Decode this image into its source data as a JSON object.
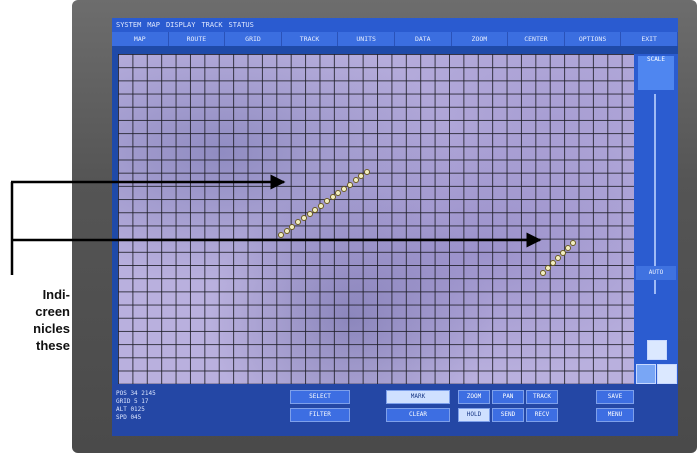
{
  "caption": {
    "lines": [
      "Indi-",
      "creen",
      "nicles",
      "these"
    ]
  },
  "display": {
    "top_bar_text": [
      "SYSTEM",
      "MAP",
      "DISPLAY",
      "TRACK",
      "STATUS"
    ],
    "menu_items": [
      "MAP",
      "ROUTE",
      "GRID",
      "TRACK",
      "UNITS",
      "DATA",
      "ZOOM",
      "CENTER",
      "OPTIONS",
      "EXIT"
    ],
    "right_panel": {
      "top_label": "SCALE",
      "mid_label": "AUTO"
    },
    "bottom_panel": {
      "left_block": [
        "POS 34 2145",
        "GRID 5 17",
        "ALT 0125",
        "SPD 045"
      ],
      "buttons": [
        "SELECT",
        "FILTER",
        "MARK",
        "CLEAR",
        "ZOOM",
        "PAN",
        "TRACK",
        "HOLD",
        "SEND",
        "RECV",
        "SAVE",
        "MENU"
      ]
    }
  },
  "colors": {
    "map_base": "#b9b0de",
    "grid_line": "#1e1e28",
    "screen_chrome": "#2a5bd0",
    "arrow": "#000000"
  }
}
